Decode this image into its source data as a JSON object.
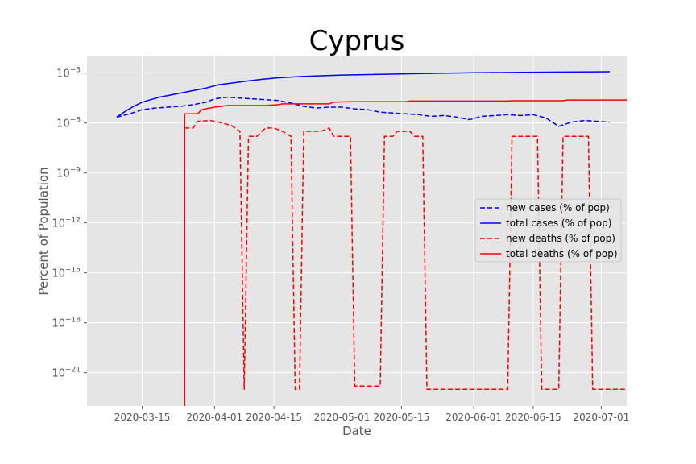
{
  "chart_data": {
    "type": "line",
    "title": "Cyprus",
    "xlabel": "Date",
    "ylabel": "Percent of Population",
    "yscale": "log",
    "ylim_exp": [
      -23,
      -2
    ],
    "xlim": [
      "2020-03-02",
      "2020-07-07"
    ],
    "grid": true,
    "legend_position": "center-right",
    "x_ticks": [
      "2020-03-15",
      "2020-04-01",
      "2020-04-15",
      "2020-05-01",
      "2020-05-15",
      "2020-06-01",
      "2020-06-15",
      "2020-07-01"
    ],
    "y_ticks": [
      {
        "exp": -3,
        "label": "10",
        "sup": "−3"
      },
      {
        "exp": -6,
        "label": "10",
        "sup": "−6"
      },
      {
        "exp": -9,
        "label": "10",
        "sup": "−9"
      },
      {
        "exp": -12,
        "label": "10",
        "sup": "−12"
      },
      {
        "exp": -15,
        "label": "10",
        "sup": "−15"
      },
      {
        "exp": -18,
        "label": "10",
        "sup": "−18"
      },
      {
        "exp": -21,
        "label": "10",
        "sup": "−21"
      }
    ],
    "series": [
      {
        "name": "new cases (% of pop)",
        "color": "#0000ff",
        "style": "dashed",
        "points": [
          [
            "2020-03-09",
            -5.65
          ],
          [
            "2020-03-12",
            -5.45
          ],
          [
            "2020-03-15",
            -5.2
          ],
          [
            "2020-03-18",
            -5.1
          ],
          [
            "2020-03-21",
            -5.05
          ],
          [
            "2020-03-24",
            -5.0
          ],
          [
            "2020-03-27",
            -4.9
          ],
          [
            "2020-03-30",
            -4.75
          ],
          [
            "2020-04-01",
            -4.55
          ],
          [
            "2020-04-04",
            -4.45
          ],
          [
            "2020-04-07",
            -4.5
          ],
          [
            "2020-04-10",
            -4.55
          ],
          [
            "2020-04-13",
            -4.6
          ],
          [
            "2020-04-16",
            -4.65
          ],
          [
            "2020-04-19",
            -4.8
          ],
          [
            "2020-04-22",
            -5.0
          ],
          [
            "2020-04-25",
            -5.1
          ],
          [
            "2020-04-28",
            -5.05
          ],
          [
            "2020-05-01",
            -5.05
          ],
          [
            "2020-05-04",
            -5.15
          ],
          [
            "2020-05-07",
            -5.2
          ],
          [
            "2020-05-10",
            -5.35
          ],
          [
            "2020-05-13",
            -5.4
          ],
          [
            "2020-05-16",
            -5.45
          ],
          [
            "2020-05-19",
            -5.5
          ],
          [
            "2020-05-22",
            -5.6
          ],
          [
            "2020-05-25",
            -5.55
          ],
          [
            "2020-05-28",
            -5.65
          ],
          [
            "2020-05-31",
            -5.8
          ],
          [
            "2020-06-03",
            -5.6
          ],
          [
            "2020-06-06",
            -5.55
          ],
          [
            "2020-06-09",
            -5.5
          ],
          [
            "2020-06-12",
            -5.55
          ],
          [
            "2020-06-15",
            -5.5
          ],
          [
            "2020-06-18",
            -5.7
          ],
          [
            "2020-06-21",
            -6.2
          ],
          [
            "2020-06-24",
            -5.95
          ],
          [
            "2020-06-27",
            -5.85
          ],
          [
            "2020-06-30",
            -5.9
          ],
          [
            "2020-07-03",
            -5.95
          ]
        ]
      },
      {
        "name": "total cases (% of pop)",
        "color": "#0000ff",
        "style": "solid",
        "points": [
          [
            "2020-03-09",
            -5.65
          ],
          [
            "2020-03-11",
            -5.3
          ],
          [
            "2020-03-13",
            -5.0
          ],
          [
            "2020-03-15",
            -4.75
          ],
          [
            "2020-03-17",
            -4.6
          ],
          [
            "2020-03-19",
            -4.45
          ],
          [
            "2020-03-21",
            -4.35
          ],
          [
            "2020-03-24",
            -4.2
          ],
          [
            "2020-03-27",
            -4.05
          ],
          [
            "2020-03-30",
            -3.9
          ],
          [
            "2020-04-02",
            -3.7
          ],
          [
            "2020-04-05",
            -3.6
          ],
          [
            "2020-04-08",
            -3.5
          ],
          [
            "2020-04-12",
            -3.38
          ],
          [
            "2020-04-16",
            -3.28
          ],
          [
            "2020-04-22",
            -3.2
          ],
          [
            "2020-05-01",
            -3.12
          ],
          [
            "2020-05-15",
            -3.05
          ],
          [
            "2020-06-01",
            -2.98
          ],
          [
            "2020-06-15",
            -2.95
          ],
          [
            "2020-07-03",
            -2.92
          ]
        ]
      },
      {
        "name": "new deaths (% of pop)",
        "color": "#ff0000",
        "style": "dashed",
        "points": [
          [
            "2020-03-25",
            -6.3
          ],
          [
            "2020-03-27",
            -6.3
          ],
          [
            "2020-03-28",
            -5.9
          ],
          [
            "2020-03-31",
            -5.85
          ],
          [
            "2020-04-02",
            -5.95
          ],
          [
            "2020-04-05",
            -6.15
          ],
          [
            "2020-04-07",
            -6.5
          ],
          [
            "2020-04-08",
            -22.0
          ],
          [
            "2020-04-09",
            -6.8
          ],
          [
            "2020-04-11",
            -6.8
          ],
          [
            "2020-04-13",
            -6.3
          ],
          [
            "2020-04-15",
            -6.3
          ],
          [
            "2020-04-17",
            -6.5
          ],
          [
            "2020-04-19",
            -6.8
          ],
          [
            "2020-04-20",
            -22.0
          ],
          [
            "2020-04-21",
            -22.0
          ],
          [
            "2020-04-22",
            -6.5
          ],
          [
            "2020-04-26",
            -6.5
          ],
          [
            "2020-04-28",
            -6.3
          ],
          [
            "2020-04-29",
            -6.8
          ],
          [
            "2020-05-03",
            -6.8
          ],
          [
            "2020-05-04",
            -21.8
          ],
          [
            "2020-05-10",
            -21.8
          ],
          [
            "2020-05-11",
            -6.8
          ],
          [
            "2020-05-13",
            -6.8
          ],
          [
            "2020-05-14",
            -6.5
          ],
          [
            "2020-05-17",
            -6.5
          ],
          [
            "2020-05-18",
            -6.8
          ],
          [
            "2020-05-20",
            -6.8
          ],
          [
            "2020-05-21",
            -22.0
          ],
          [
            "2020-06-09",
            -22.0
          ],
          [
            "2020-06-10",
            -6.8
          ],
          [
            "2020-06-16",
            -6.8
          ],
          [
            "2020-06-17",
            -22.0
          ],
          [
            "2020-06-21",
            -22.0
          ],
          [
            "2020-06-22",
            -6.8
          ],
          [
            "2020-06-28",
            -6.8
          ],
          [
            "2020-06-29",
            -22.0
          ],
          [
            "2020-07-07",
            -22.0
          ]
        ]
      },
      {
        "name": "total deaths (% of pop)",
        "color": "#ff0000",
        "style": "solid",
        "points": [
          [
            "2020-03-25",
            -23.5
          ],
          [
            "2020-03-25",
            -5.45
          ],
          [
            "2020-03-28",
            -5.45
          ],
          [
            "2020-03-29",
            -5.2
          ],
          [
            "2020-04-01",
            -5.05
          ],
          [
            "2020-04-04",
            -4.95
          ],
          [
            "2020-04-13",
            -4.95
          ],
          [
            "2020-04-16",
            -4.9
          ],
          [
            "2020-04-17",
            -4.85
          ],
          [
            "2020-04-28",
            -4.85
          ],
          [
            "2020-04-29",
            -4.75
          ],
          [
            "2020-05-03",
            -4.72
          ],
          [
            "2020-05-16",
            -4.72
          ],
          [
            "2020-05-17",
            -4.68
          ],
          [
            "2020-06-09",
            -4.68
          ],
          [
            "2020-06-10",
            -4.66
          ],
          [
            "2020-06-22",
            -4.66
          ],
          [
            "2020-06-23",
            -4.62
          ],
          [
            "2020-07-07",
            -4.62
          ]
        ]
      }
    ]
  }
}
